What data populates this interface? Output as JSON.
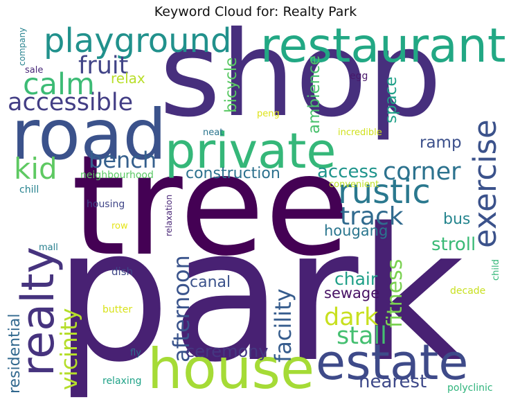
{
  "title": "Keyword Cloud for: Realty Park",
  "words": [
    {
      "text": "park",
      "color": "#482173"
    },
    {
      "text": "tree",
      "color": "#440154"
    },
    {
      "text": "shop",
      "color": "#472f7d"
    },
    {
      "text": "road",
      "color": "#3b528b"
    },
    {
      "text": "restaurant",
      "color": "#22a884"
    },
    {
      "text": "private",
      "color": "#35b779"
    },
    {
      "text": "house",
      "color": "#a5db36"
    },
    {
      "text": "estate",
      "color": "#3e4a89"
    },
    {
      "text": "realty",
      "color": "#46337e"
    },
    {
      "text": "playground",
      "color": "#21918c"
    },
    {
      "text": "exercise",
      "color": "#3b528b"
    },
    {
      "text": "rustic",
      "color": "#2a788e"
    },
    {
      "text": "accessible",
      "color": "#433e85"
    },
    {
      "text": "calm",
      "color": "#3cbb75"
    },
    {
      "text": "kid",
      "color": "#5ec962"
    },
    {
      "text": "corner",
      "color": "#2c728e"
    },
    {
      "text": "track",
      "color": "#306a8e"
    },
    {
      "text": "bench",
      "color": "#355f8d"
    },
    {
      "text": "fruit",
      "color": "#414487"
    },
    {
      "text": "afternoon",
      "color": "#3a548c"
    },
    {
      "text": "facility",
      "color": "#365c8d"
    },
    {
      "text": "vicinity",
      "color": "#b5de2b"
    },
    {
      "text": "stall",
      "color": "#44bf70"
    },
    {
      "text": "dark",
      "color": "#c8e020"
    },
    {
      "text": "fitness",
      "color": "#7ad151"
    },
    {
      "text": "residential",
      "color": "#31688e"
    },
    {
      "text": "nearest",
      "color": "#3e4989"
    },
    {
      "text": "ceremony",
      "color": "#453781"
    },
    {
      "text": "construction",
      "color": "#2d718e"
    },
    {
      "text": "access",
      "color": "#1f948c"
    },
    {
      "text": "stroll",
      "color": "#3aba76"
    },
    {
      "text": "ramp",
      "color": "#3c508b"
    },
    {
      "text": "space",
      "color": "#1fa088"
    },
    {
      "text": "bicycle",
      "color": "#5ac864"
    },
    {
      "text": "ambience",
      "color": "#4ac16d"
    },
    {
      "text": "relax",
      "color": "#b8de29"
    },
    {
      "text": "hougang",
      "color": "#2a768e"
    },
    {
      "text": "bus",
      "color": "#25858e"
    },
    {
      "text": "chair",
      "color": "#1f9f88"
    },
    {
      "text": "sewage",
      "color": "#471164"
    },
    {
      "text": "canal",
      "color": "#3b528b"
    },
    {
      "text": "company",
      "color": "#26828e"
    },
    {
      "text": "sale",
      "color": "#482878"
    },
    {
      "text": "egg",
      "color": "#48186a"
    },
    {
      "text": "peng",
      "color": "#dde318"
    },
    {
      "text": "neat",
      "color": "#2b758e"
    },
    {
      "text": "incredible",
      "color": "#d0e11c"
    },
    {
      "text": "chill",
      "color": "#26828e"
    },
    {
      "text": "neighbourhood",
      "color": "#5ac864"
    },
    {
      "text": "convenient",
      "color": "#bddf26"
    },
    {
      "text": "housing",
      "color": "#404688"
    },
    {
      "text": "row",
      "color": "#e5e419"
    },
    {
      "text": "relaxation",
      "color": "#482576"
    },
    {
      "text": "mall",
      "color": "#277f8e"
    },
    {
      "text": "dish",
      "color": "#3f4788"
    },
    {
      "text": "butter",
      "color": "#d8e219"
    },
    {
      "text": "decade",
      "color": "#c8e020"
    },
    {
      "text": "child",
      "color": "#35b779"
    },
    {
      "text": "fly",
      "color": "#2e6f8e"
    },
    {
      "text": "relaxing",
      "color": "#1fa287"
    },
    {
      "text": "polyclinic",
      "color": "#2fb47c"
    }
  ]
}
